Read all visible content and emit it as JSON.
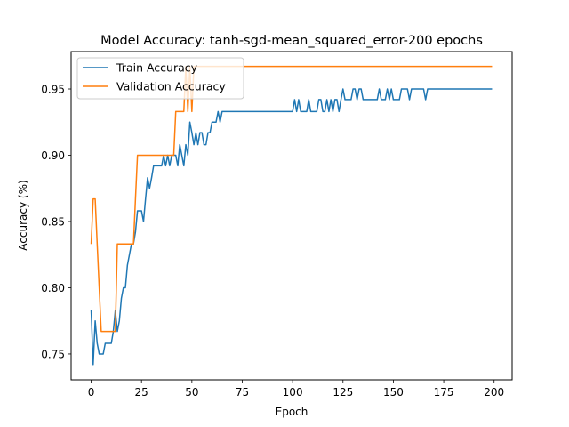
{
  "chart_data": {
    "type": "line",
    "title": "Model Accuracy: tanh-sgd-mean_squared_error-200 epochs",
    "xlabel": "Epoch",
    "ylabel": "Accuracy (%)",
    "xlim": [
      -9.95,
      208.95
    ],
    "ylim": [
      0.7305,
      0.9782
    ],
    "xticks": [
      {
        "value": 0,
        "label": "0"
      },
      {
        "value": 25,
        "label": "25"
      },
      {
        "value": 50,
        "label": "50"
      },
      {
        "value": 75,
        "label": "75"
      },
      {
        "value": 100,
        "label": "100"
      },
      {
        "value": 125,
        "label": "125"
      },
      {
        "value": 150,
        "label": "150"
      },
      {
        "value": 175,
        "label": "175"
      },
      {
        "value": 200,
        "label": "200"
      }
    ],
    "yticks": [
      {
        "value": 0.75,
        "label": "0.75"
      },
      {
        "value": 0.8,
        "label": "0.80"
      },
      {
        "value": 0.85,
        "label": "0.85"
      },
      {
        "value": 0.9,
        "label": "0.90"
      },
      {
        "value": 0.95,
        "label": "0.95"
      }
    ],
    "grid": false,
    "legend_position": "top-left",
    "series": [
      {
        "name": "Train Accuracy",
        "color": "#1f77b4",
        "x": [
          0,
          1,
          2,
          3,
          4,
          5,
          6,
          7,
          8,
          9,
          10,
          11,
          12,
          13,
          14,
          15,
          16,
          17,
          18,
          19,
          20,
          21,
          22,
          23,
          24,
          25,
          26,
          27,
          28,
          29,
          30,
          31,
          32,
          33,
          34,
          35,
          36,
          37,
          38,
          39,
          40,
          41,
          42,
          43,
          44,
          45,
          46,
          47,
          48,
          49,
          50,
          51,
          52,
          53,
          54,
          55,
          56,
          57,
          58,
          59,
          60,
          61,
          62,
          63,
          64,
          65,
          66,
          67,
          68,
          69,
          70,
          100,
          101,
          102,
          103,
          104,
          105,
          106,
          107,
          108,
          109,
          110,
          111,
          112,
          113,
          114,
          115,
          116,
          117,
          118,
          119,
          120,
          121,
          122,
          123,
          124,
          125,
          126,
          127,
          128,
          129,
          130,
          131,
          132,
          133,
          134,
          135,
          136,
          137,
          138,
          139,
          140,
          141,
          142,
          143,
          144,
          145,
          146,
          147,
          148,
          149,
          150,
          151,
          152,
          153,
          154,
          155,
          156,
          157,
          158,
          159,
          160,
          161,
          162,
          163,
          164,
          165,
          166,
          167,
          168,
          169,
          170,
          199
        ],
        "values": [
          0.783,
          0.742,
          0.775,
          0.758,
          0.75,
          0.75,
          0.75,
          0.758,
          0.758,
          0.758,
          0.758,
          0.767,
          0.783,
          0.767,
          0.775,
          0.792,
          0.8,
          0.8,
          0.817,
          0.825,
          0.833,
          0.833,
          0.842,
          0.858,
          0.858,
          0.858,
          0.85,
          0.867,
          0.883,
          0.875,
          0.883,
          0.892,
          0.892,
          0.892,
          0.892,
          0.892,
          0.9,
          0.892,
          0.9,
          0.892,
          0.9,
          0.9,
          0.9,
          0.892,
          0.908,
          0.9,
          0.892,
          0.908,
          0.9,
          0.925,
          0.917,
          0.908,
          0.917,
          0.908,
          0.917,
          0.917,
          0.908,
          0.908,
          0.917,
          0.917,
          0.925,
          0.925,
          0.925,
          0.933,
          0.925,
          0.933,
          0.933,
          0.933,
          0.933,
          0.933,
          0.933,
          0.933,
          0.942,
          0.933,
          0.942,
          0.933,
          0.933,
          0.933,
          0.933,
          0.942,
          0.933,
          0.933,
          0.933,
          0.933,
          0.942,
          0.942,
          0.933,
          0.933,
          0.942,
          0.933,
          0.942,
          0.933,
          0.942,
          0.942,
          0.933,
          0.942,
          0.95,
          0.942,
          0.942,
          0.942,
          0.942,
          0.95,
          0.95,
          0.942,
          0.95,
          0.95,
          0.942,
          0.942,
          0.942,
          0.942,
          0.942,
          0.942,
          0.942,
          0.942,
          0.95,
          0.942,
          0.942,
          0.942,
          0.95,
          0.942,
          0.95,
          0.942,
          0.942,
          0.942,
          0.942,
          0.95,
          0.95,
          0.95,
          0.95,
          0.942,
          0.95,
          0.95,
          0.95,
          0.95,
          0.95,
          0.95,
          0.95,
          0.942,
          0.95,
          0.95,
          0.95,
          0.95,
          0.95
        ]
      },
      {
        "name": "Validation Accuracy",
        "color": "#ff7f0e",
        "x": [
          0,
          1,
          2,
          3,
          4,
          5,
          6,
          7,
          8,
          9,
          10,
          11,
          12,
          13,
          14,
          15,
          16,
          17,
          18,
          19,
          20,
          21,
          22,
          23,
          24,
          25,
          26,
          27,
          28,
          29,
          30,
          31,
          32,
          33,
          34,
          35,
          36,
          37,
          38,
          39,
          40,
          41,
          42,
          43,
          44,
          45,
          46,
          47,
          48,
          49,
          50,
          51,
          52,
          199
        ],
        "values": [
          0.833,
          0.867,
          0.867,
          0.833,
          0.8,
          0.767,
          0.767,
          0.767,
          0.767,
          0.767,
          0.767,
          0.767,
          0.767,
          0.833,
          0.833,
          0.833,
          0.833,
          0.833,
          0.833,
          0.833,
          0.833,
          0.833,
          0.867,
          0.9,
          0.9,
          0.9,
          0.9,
          0.9,
          0.9,
          0.9,
          0.9,
          0.9,
          0.9,
          0.9,
          0.9,
          0.9,
          0.9,
          0.9,
          0.9,
          0.9,
          0.9,
          0.9,
          0.933,
          0.933,
          0.933,
          0.933,
          0.933,
          0.967,
          0.933,
          0.967,
          0.933,
          0.967,
          0.967,
          0.967
        ]
      }
    ]
  }
}
